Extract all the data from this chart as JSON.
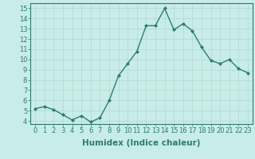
{
  "x": [
    0,
    1,
    2,
    3,
    4,
    5,
    6,
    7,
    8,
    9,
    10,
    11,
    12,
    13,
    14,
    15,
    16,
    17,
    18,
    19,
    20,
    21,
    22,
    23
  ],
  "y": [
    5.2,
    5.4,
    5.1,
    4.6,
    4.1,
    4.5,
    3.9,
    4.3,
    6.0,
    8.4,
    9.6,
    10.8,
    13.3,
    13.3,
    15.0,
    12.9,
    13.5,
    12.8,
    11.2,
    9.9,
    9.6,
    10.0,
    9.1,
    8.7
  ],
  "line_color": "#2d7d6e",
  "marker": "D",
  "marker_size": 2,
  "linewidth": 1.0,
  "bg_color": "#c8ece8",
  "grid_color": "#b0d8d0",
  "xlabel": "Humidex (Indice chaleur)",
  "xlabel_fontsize": 7.5,
  "tick_fontsize": 6,
  "ylim": [
    4,
    15
  ],
  "xlim": [
    -0.5,
    23.5
  ],
  "yticks": [
    4,
    5,
    6,
    7,
    8,
    9,
    10,
    11,
    12,
    13,
    14,
    15
  ],
  "xticks": [
    0,
    1,
    2,
    3,
    4,
    5,
    6,
    7,
    8,
    9,
    10,
    11,
    12,
    13,
    14,
    15,
    16,
    17,
    18,
    19,
    20,
    21,
    22,
    23
  ]
}
